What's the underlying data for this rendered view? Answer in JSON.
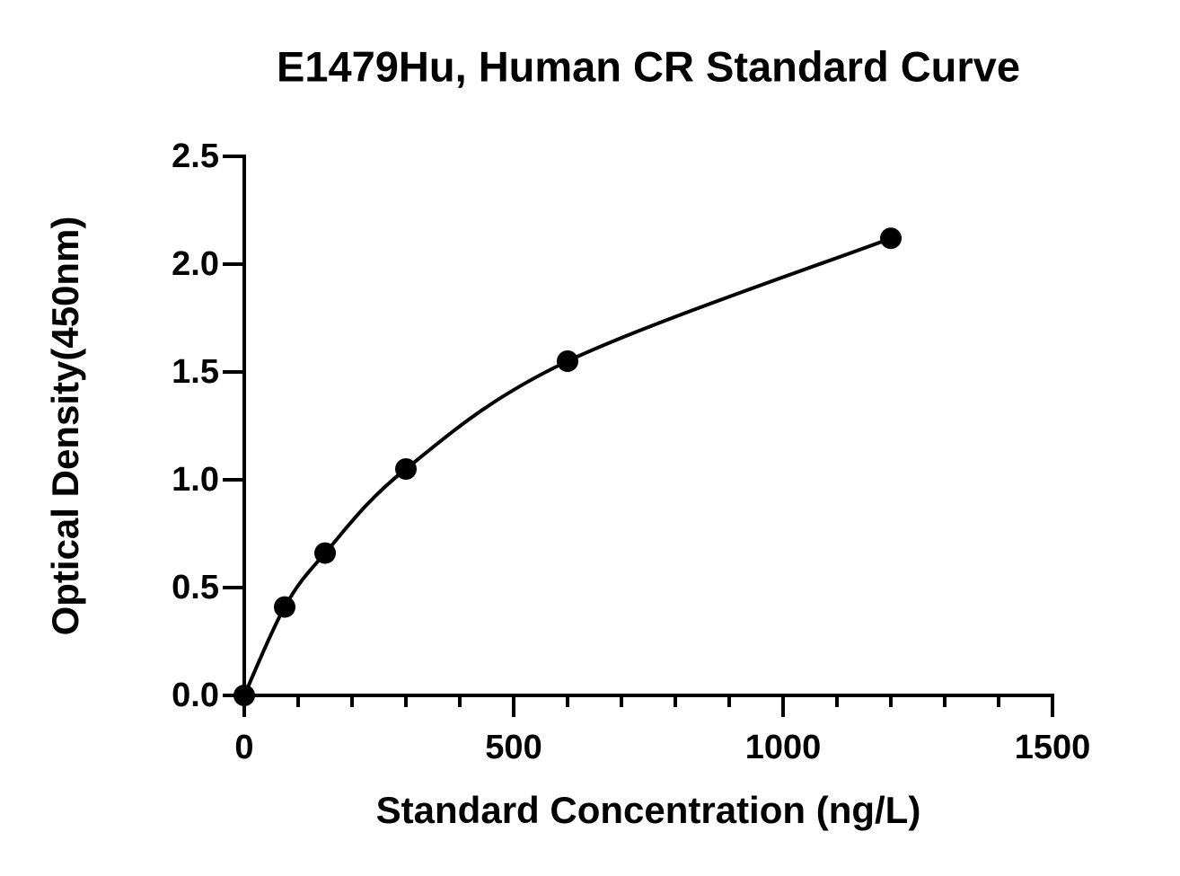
{
  "chart_data": {
    "type": "scatter",
    "title": "E1479Hu, Human CR Standard Curve",
    "x_label": "Standard Concentration (ng/L)",
    "y_label": "Optical Density(450nm)",
    "x": [
      0,
      75,
      150,
      300,
      600,
      1200
    ],
    "values": [
      0.0,
      0.41,
      0.66,
      1.05,
      1.55,
      2.12
    ],
    "color": "#000000",
    "fit_curve": true,
    "xlim": [
      0,
      1500
    ],
    "xticks": [
      0,
      500,
      1000,
      1500
    ],
    "xminorticks": [
      100,
      200,
      300,
      400,
      600,
      700,
      800,
      900,
      1100,
      1200,
      1300,
      1400
    ],
    "ylim": [
      0,
      2.5
    ],
    "yticks": [
      {
        "value": 0,
        "label": "0.0"
      },
      0.5,
      {
        "value": 1,
        "label": "1.0"
      },
      1.5,
      {
        "value": 2,
        "label": "2.0"
      },
      2.5
    ],
    "grid": false
  }
}
